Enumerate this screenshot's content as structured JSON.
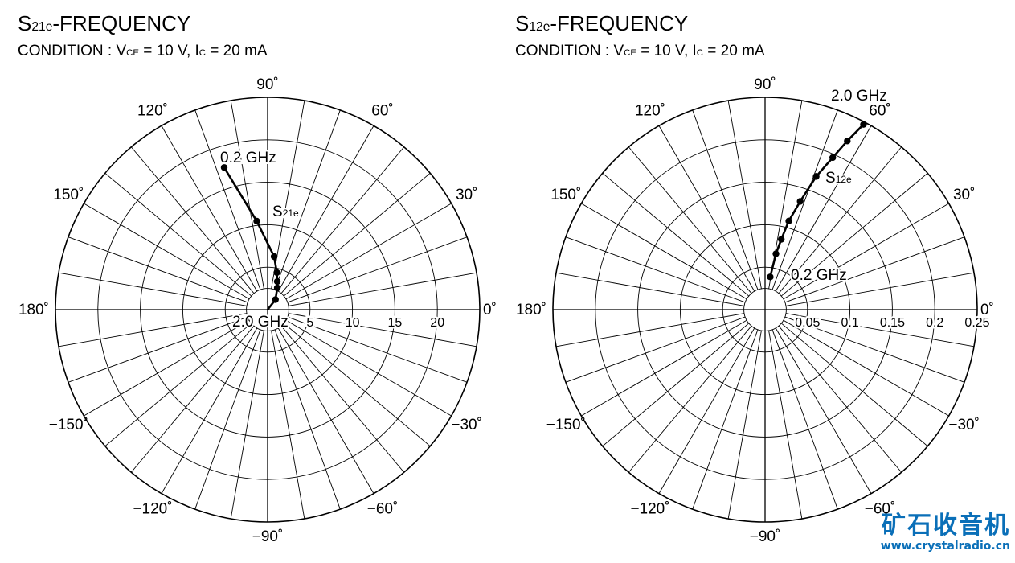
{
  "chart_data": [
    {
      "type": "polar",
      "title": {
        "main": "S",
        "sub": "21e",
        "rest": "-FREQUENCY"
      },
      "subtitle": {
        "pre": "CONDITION : V",
        "sub1": "CE",
        "mid": " = 10 V, I",
        "sub2": "C",
        "post": " = 20 mA"
      },
      "radial_ticks": [
        5,
        10,
        15,
        20
      ],
      "radial_tick_labels": [
        "5",
        "10",
        "15",
        "20"
      ],
      "radial_range": [
        0,
        25
      ],
      "radial_grid": [
        2.5,
        5,
        10,
        15,
        20,
        25
      ],
      "angle_labels": [
        "0˚",
        "30˚",
        "60˚",
        "90˚",
        "120˚",
        "150˚",
        "180˚",
        "−150˚",
        "−120˚",
        "−90˚",
        "−60˚",
        "−30˚"
      ],
      "angle_label_values": [
        0,
        30,
        60,
        90,
        120,
        150,
        180,
        -150,
        -120,
        -90,
        -60,
        -30
      ],
      "angle_grid_step_deg": 10,
      "series": [
        {
          "label": {
            "main": "S",
            "sub": "21e"
          },
          "points": [
            {
              "mag": 17.5,
              "angle_deg": 107
            },
            {
              "mag": 10.5,
              "angle_deg": 97
            },
            {
              "mag": 6.3,
              "angle_deg": 83
            },
            {
              "mag": 4.5,
              "angle_deg": 76
            },
            {
              "mag": 3.5,
              "angle_deg": 71
            },
            {
              "mag": 2.8,
              "angle_deg": 66
            },
            {
              "mag": 1.5,
              "angle_deg": 52
            }
          ]
        }
      ],
      "annotations": {
        "start": "0.2 GHz",
        "end": "2.0 GHz"
      }
    },
    {
      "type": "polar",
      "title": {
        "main": "S",
        "sub": "12e",
        "rest": "-FREQUENCY"
      },
      "subtitle": {
        "pre": "CONDITION : V",
        "sub1": "CE",
        "mid": " = 10 V, I",
        "sub2": "C",
        "post": " = 20 mA"
      },
      "radial_ticks": [
        0.05,
        0.1,
        0.15,
        0.2,
        0.25
      ],
      "radial_tick_labels": [
        "0.05",
        "0.1",
        "0.15",
        "0.2",
        "0.25"
      ],
      "radial_range": [
        0,
        0.25
      ],
      "radial_grid": [
        0.025,
        0.05,
        0.1,
        0.15,
        0.2,
        0.25
      ],
      "angle_labels": [
        "0˚",
        "30˚",
        "60˚",
        "90˚",
        "120˚",
        "150˚",
        "180˚",
        "−150˚",
        "−120˚",
        "−90˚",
        "−60˚",
        "−30˚"
      ],
      "angle_label_values": [
        0,
        30,
        60,
        90,
        120,
        150,
        180,
        -150,
        -120,
        -90,
        -60,
        -30
      ],
      "angle_grid_step_deg": 10,
      "series": [
        {
          "label": {
            "main": "S",
            "sub": "12e"
          },
          "points": [
            {
              "mag": 0.039,
              "angle_deg": 81
            },
            {
              "mag": 0.067,
              "angle_deg": 79
            },
            {
              "mag": 0.085,
              "angle_deg": 77
            },
            {
              "mag": 0.108,
              "angle_deg": 75
            },
            {
              "mag": 0.134,
              "angle_deg": 72
            },
            {
              "mag": 0.168,
              "angle_deg": 69
            },
            {
              "mag": 0.196,
              "angle_deg": 66
            },
            {
              "mag": 0.221,
              "angle_deg": 64
            },
            {
              "mag": 0.247,
              "angle_deg": 62
            }
          ]
        }
      ],
      "annotations": {
        "start": "0.2 GHz",
        "end": "2.0 GHz"
      }
    }
  ],
  "watermark": {
    "logo": "矿石收音机",
    "url": "www.crystalradio.cn"
  }
}
